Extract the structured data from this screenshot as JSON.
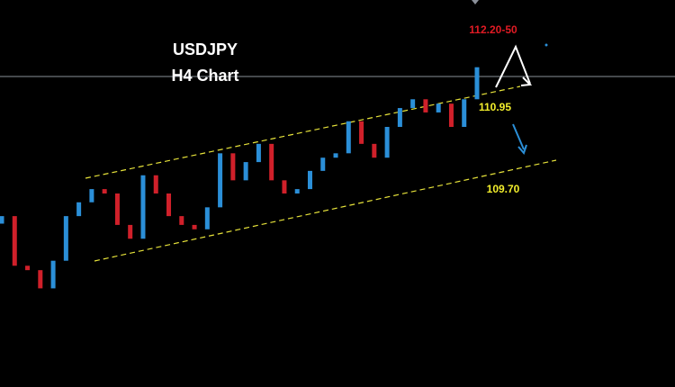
{
  "chart_data": {
    "type": "candlestick",
    "title": "USDJPY",
    "subtitle": "H4 Chart",
    "annotations": [
      "112.20-50",
      "110.95",
      "109.70"
    ],
    "open": [
      109.0,
      109.12,
      108.33,
      108.26,
      107.97,
      108.41,
      109.12,
      109.34,
      109.55,
      109.48,
      108.98,
      108.76,
      109.77,
      109.48,
      109.12,
      108.98,
      108.91,
      109.26,
      110.12,
      109.69,
      109.98,
      110.27,
      109.69,
      109.48,
      109.55,
      109.84,
      110.05,
      110.12,
      110.63,
      110.27,
      110.05,
      110.54,
      110.84,
      110.98,
      110.77,
      110.91,
      110.54,
      110.98
    ],
    "close": [
      109.12,
      108.33,
      108.26,
      107.97,
      108.41,
      109.12,
      109.34,
      109.55,
      109.48,
      108.98,
      108.76,
      109.77,
      109.48,
      109.12,
      108.98,
      108.91,
      109.26,
      110.12,
      109.69,
      109.98,
      110.27,
      109.69,
      109.48,
      109.55,
      109.84,
      110.05,
      110.12,
      110.63,
      110.27,
      110.05,
      110.54,
      110.84,
      110.98,
      110.77,
      110.91,
      110.54,
      110.98,
      111.49
    ],
    "ylim": [
      106.4,
      112.56
    ],
    "up_color": "#2b8fd8",
    "down_color": "#d0202a"
  }
}
